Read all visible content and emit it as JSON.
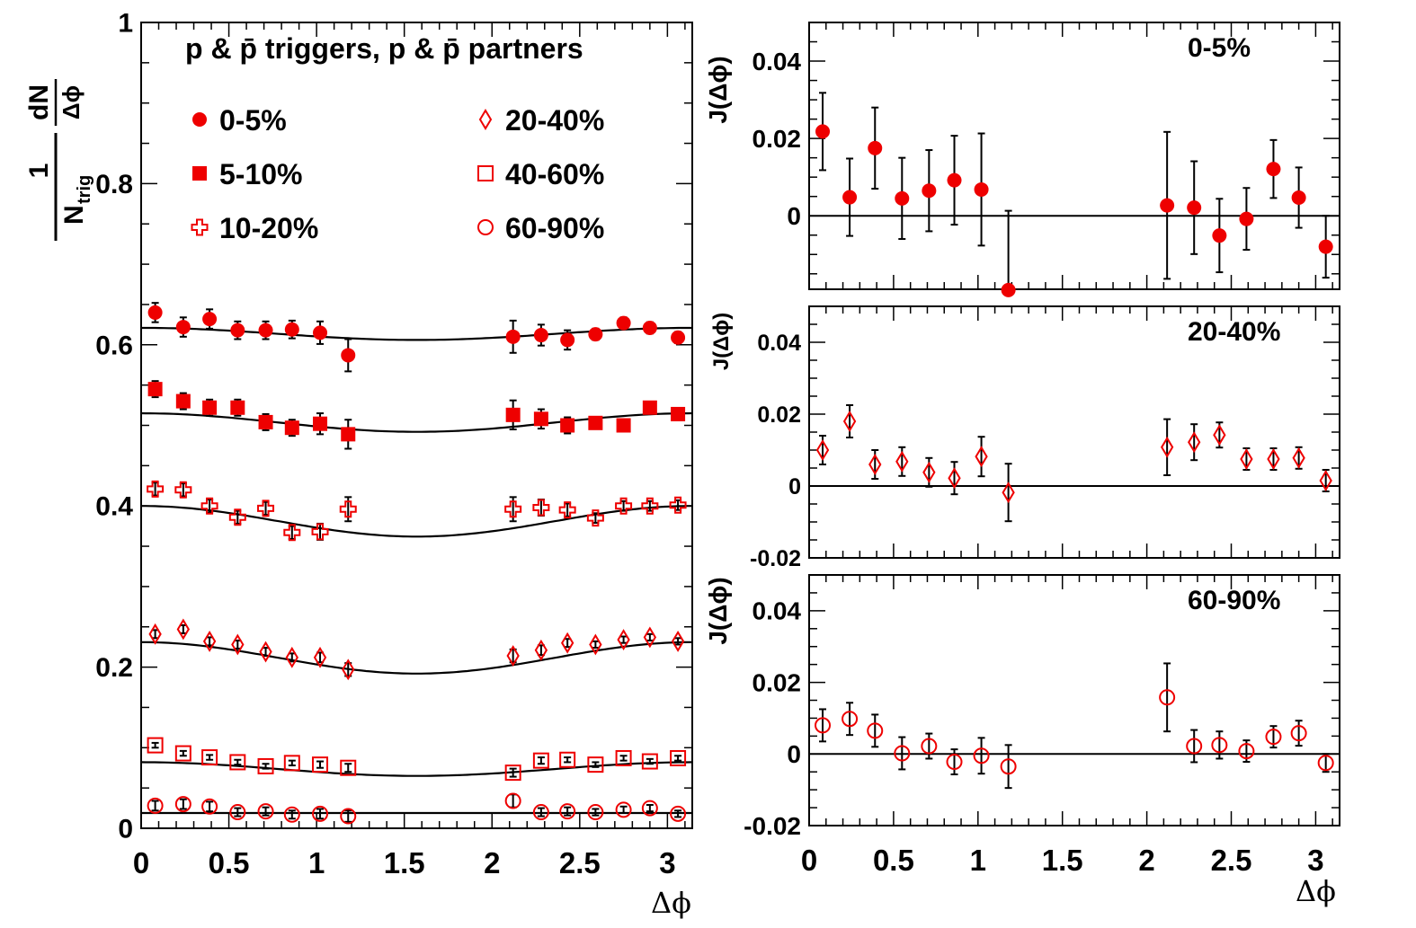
{
  "figure": {
    "title": "p & p̄ triggers, p & p̄ partners",
    "left_xlabel": "Δϕ",
    "right_xlabel": "Δϕ",
    "left_ylabel": {
      "num": "1",
      "den": "N",
      "den_sub": "trig",
      "num2": "dN",
      "den2": "Δϕ"
    },
    "right_ylabel": "J(Δϕ)"
  },
  "chart_data": [
    {
      "type": "scatter",
      "id": "left",
      "xlim": [
        0,
        3.14159
      ],
      "ylim": [
        0,
        1
      ],
      "xticks": [
        "0",
        "0.5",
        "1",
        "1.5",
        "2",
        "2.5",
        "3"
      ],
      "xtick_values": [
        0,
        0.5,
        1,
        1.5,
        2,
        2.5,
        3
      ],
      "yticks": [
        "0",
        "0.2",
        "0.4",
        "0.6",
        "0.8",
        "1"
      ],
      "ytick_values": [
        0,
        0.2,
        0.4,
        0.6,
        0.8,
        1
      ],
      "legend": [
        {
          "label": "0-5%",
          "marker": "filled-circle"
        },
        {
          "label": "20-40%",
          "marker": "open-diamond"
        },
        {
          "label": "5-10%",
          "marker": "filled-square"
        },
        {
          "label": "40-60%",
          "marker": "open-square"
        },
        {
          "label": "10-20%",
          "marker": "open-cross"
        },
        {
          "label": "60-90%",
          "marker": "open-circle"
        }
      ],
      "x": [
        0.08,
        0.24,
        0.39,
        0.55,
        0.71,
        0.86,
        1.02,
        1.18,
        2.12,
        2.28,
        2.43,
        2.59,
        2.75,
        2.9,
        3.06
      ],
      "series": [
        {
          "name": "0-5%",
          "marker": "filled-circle",
          "color": "#ee0000",
          "values": [
            0.64,
            0.622,
            0.632,
            0.618,
            0.618,
            0.619,
            0.615,
            0.587,
            0.61,
            0.612,
            0.606,
            0.613,
            0.627,
            0.621,
            0.609
          ],
          "errors": [
            0.012,
            0.012,
            0.012,
            0.011,
            0.011,
            0.011,
            0.014,
            0.02,
            0.02,
            0.013,
            0.012,
            0.007,
            0.007,
            0.007,
            0.007
          ],
          "fit": {
            "a": 0.6135,
            "b": 0.0075
          }
        },
        {
          "name": "5-10%",
          "marker": "filled-square",
          "color": "#ee0000",
          "values": [
            0.545,
            0.53,
            0.522,
            0.522,
            0.504,
            0.497,
            0.502,
            0.489,
            0.513,
            0.508,
            0.5,
            0.503,
            0.5,
            0.522,
            0.514
          ],
          "errors": [
            0.01,
            0.01,
            0.01,
            0.01,
            0.01,
            0.01,
            0.013,
            0.018,
            0.018,
            0.012,
            0.01,
            0.007,
            0.007,
            0.007,
            0.007
          ],
          "fit": {
            "a": 0.5035,
            "b": 0.0115
          }
        },
        {
          "name": "10-20%",
          "marker": "open-cross",
          "color": "#ee0000",
          "values": [
            0.421,
            0.42,
            0.4,
            0.386,
            0.397,
            0.367,
            0.368,
            0.396,
            0.396,
            0.398,
            0.395,
            0.385,
            0.4,
            0.4,
            0.401
          ],
          "errors": [
            0.008,
            0.008,
            0.008,
            0.008,
            0.008,
            0.008,
            0.01,
            0.015,
            0.015,
            0.01,
            0.008,
            0.006,
            0.006,
            0.006,
            0.006
          ],
          "fit": {
            "a": 0.381,
            "b": 0.019
          }
        },
        {
          "name": "20-40%",
          "marker": "open-diamond",
          "color": "#ee0000",
          "values": [
            0.241,
            0.247,
            0.232,
            0.228,
            0.219,
            0.212,
            0.212,
            0.197,
            0.214,
            0.221,
            0.23,
            0.228,
            0.234,
            0.237,
            0.232
          ],
          "errors": [
            0.005,
            0.005,
            0.005,
            0.005,
            0.005,
            0.005,
            0.006,
            0.008,
            0.008,
            0.006,
            0.005,
            0.004,
            0.004,
            0.004,
            0.004
          ],
          "fit": {
            "a": 0.2115,
            "b": 0.0195
          }
        },
        {
          "name": "40-60%",
          "marker": "open-square",
          "color": "#ee0000",
          "values": [
            0.103,
            0.093,
            0.088,
            0.082,
            0.077,
            0.081,
            0.079,
            0.075,
            0.069,
            0.084,
            0.085,
            0.079,
            0.087,
            0.083,
            0.087
          ],
          "errors": [
            0.003,
            0.003,
            0.003,
            0.003,
            0.003,
            0.003,
            0.004,
            0.005,
            0.005,
            0.004,
            0.003,
            0.003,
            0.003,
            0.003,
            0.003
          ],
          "fit": {
            "a": 0.0735,
            "b": 0.0085
          }
        },
        {
          "name": "60-90%",
          "marker": "open-circle",
          "color": "#ee0000",
          "values": [
            0.028,
            0.03,
            0.027,
            0.02,
            0.021,
            0.017,
            0.018,
            0.015,
            0.034,
            0.02,
            0.021,
            0.02,
            0.023,
            0.025,
            0.018
          ],
          "errors": [
            0.006,
            0.006,
            0.006,
            0.005,
            0.005,
            0.005,
            0.006,
            0.007,
            0.008,
            0.005,
            0.005,
            0.004,
            0.004,
            0.004,
            0.004
          ],
          "fit": {
            "a": 0.019,
            "b": 0.0
          }
        }
      ]
    },
    {
      "type": "scatter",
      "id": "right-0-5",
      "label": "0-5%",
      "marker": "filled-circle",
      "color": "#ee0000",
      "xlim": [
        0,
        3.14159
      ],
      "ylim": [
        -0.019,
        0.05
      ],
      "yticks": [
        "0",
        "0.02",
        "0.04"
      ],
      "ytick_values": [
        0,
        0.02,
        0.04
      ],
      "x": [
        0.08,
        0.24,
        0.39,
        0.55,
        0.71,
        0.86,
        1.02,
        1.18,
        2.12,
        2.28,
        2.43,
        2.59,
        2.75,
        2.9,
        3.06
      ],
      "values": [
        0.0218,
        0.0048,
        0.0175,
        0.0045,
        0.0065,
        0.0092,
        0.0068,
        -0.0192,
        0.0027,
        0.0021,
        -0.0051,
        -0.0008,
        0.0121,
        0.0047,
        -0.008
      ],
      "errors": [
        0.01,
        0.01,
        0.0105,
        0.0105,
        0.0105,
        0.0115,
        0.0145,
        0.0205,
        0.019,
        0.012,
        0.0095,
        0.008,
        0.0075,
        0.0078,
        0.008
      ]
    },
    {
      "type": "scatter",
      "id": "right-20-40",
      "label": "20-40%",
      "marker": "open-diamond",
      "color": "#ee0000",
      "xlim": [
        0,
        3.14159
      ],
      "ylim": [
        -0.02,
        0.05
      ],
      "yticks": [
        "-0.02",
        "0",
        "0.02",
        "0.04"
      ],
      "ytick_values": [
        -0.02,
        0,
        0.02,
        0.04
      ],
      "x": [
        0.08,
        0.24,
        0.39,
        0.55,
        0.71,
        0.86,
        1.02,
        1.18,
        2.12,
        2.28,
        2.43,
        2.59,
        2.75,
        2.9,
        3.06
      ],
      "values": [
        0.01,
        0.018,
        0.006,
        0.0068,
        0.0038,
        0.0022,
        0.0082,
        -0.0018,
        0.0108,
        0.0122,
        0.0142,
        0.0075,
        0.0075,
        0.0078,
        0.0015
      ],
      "errors": [
        0.004,
        0.0045,
        0.004,
        0.004,
        0.004,
        0.0045,
        0.0055,
        0.008,
        0.0078,
        0.005,
        0.0035,
        0.003,
        0.003,
        0.003,
        0.003
      ]
    },
    {
      "type": "scatter",
      "id": "right-60-90",
      "label": "60-90%",
      "marker": "open-circle",
      "color": "#ee0000",
      "xlim": [
        0,
        3.14159
      ],
      "ylim": [
        -0.02,
        0.05
      ],
      "xticks": [
        "0",
        "0.5",
        "1",
        "1.5",
        "2",
        "2.5",
        "3"
      ],
      "xtick_values": [
        0,
        0.5,
        1,
        1.5,
        2,
        2.5,
        3
      ],
      "yticks": [
        "-0.02",
        "0",
        "0.02",
        "0.04"
      ],
      "ytick_values": [
        -0.02,
        0,
        0.02,
        0.04
      ],
      "x": [
        0.08,
        0.24,
        0.39,
        0.55,
        0.71,
        0.86,
        1.02,
        1.18,
        2.12,
        2.28,
        2.43,
        2.59,
        2.75,
        2.9,
        3.06
      ],
      "values": [
        0.008,
        0.0098,
        0.0065,
        0.0002,
        0.0022,
        -0.0022,
        -0.0005,
        -0.0035,
        0.0158,
        0.0022,
        0.0025,
        0.0008,
        0.0048,
        0.0058,
        -0.0025
      ],
      "errors": [
        0.0045,
        0.0045,
        0.0045,
        0.0045,
        0.0035,
        0.0035,
        0.005,
        0.006,
        0.0095,
        0.0045,
        0.0038,
        0.003,
        0.003,
        0.0035,
        0.0025
      ]
    }
  ]
}
